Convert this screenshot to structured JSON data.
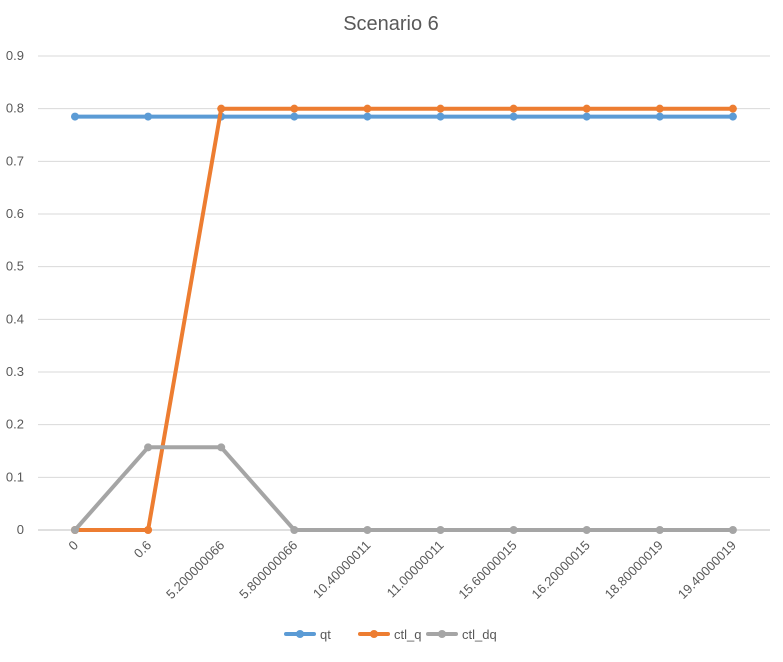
{
  "chart_data": {
    "type": "line",
    "title": "Scenario 6",
    "xlabel": "",
    "ylabel": "",
    "categories": [
      "0",
      "0.6",
      "5.200000066",
      "5.800000066",
      "10.40000011",
      "11.00000011",
      "15.60000015",
      "16.20000015",
      "18.80000019",
      "19.40000019"
    ],
    "ylim": [
      0,
      0.9
    ],
    "yticks": [
      "0",
      "0.1",
      "0.2",
      "0.3",
      "0.4",
      "0.5",
      "0.6",
      "0.7",
      "0.8",
      "0.9"
    ],
    "grid": true,
    "legend": "bottom",
    "series": [
      {
        "name": "qt",
        "color": "#5B9BD5",
        "values": [
          0.785,
          0.785,
          0.785,
          0.785,
          0.785,
          0.785,
          0.785,
          0.785,
          0.785,
          0.785
        ]
      },
      {
        "name": "ctl_q",
        "color": "#ED7D31",
        "values": [
          0,
          0,
          0.8,
          0.8,
          0.8,
          0.8,
          0.8,
          0.8,
          0.8,
          0.8
        ]
      },
      {
        "name": "ctl_dq",
        "color": "#A5A5A5",
        "values": [
          0,
          0.157,
          0.157,
          0,
          0,
          0,
          0,
          0,
          0,
          0
        ]
      }
    ]
  }
}
